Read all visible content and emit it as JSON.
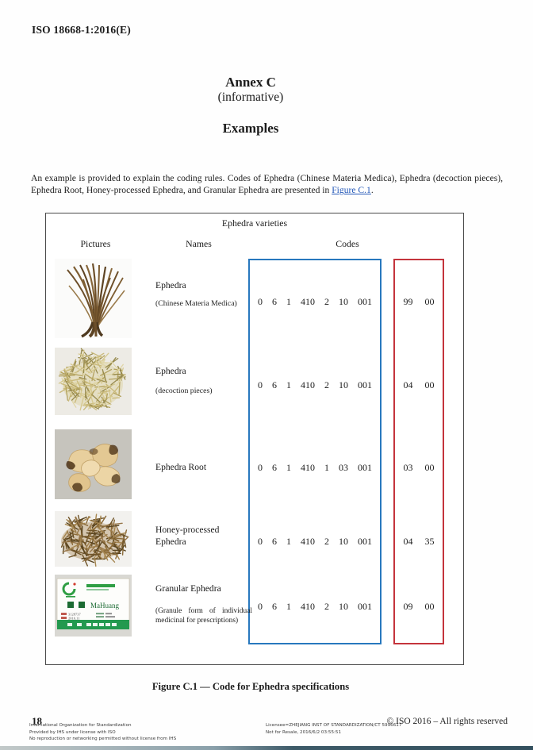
{
  "document": {
    "header": "ISO 18668-1:2016(E)",
    "annex": {
      "title": "Annex C",
      "subtitle": "(informative)",
      "section_title": "Examples"
    },
    "intro": {
      "text_before": "An example is provided to explain the coding rules. Codes of Ephedra (Chinese Materia Medica), Ephedra (decoction pieces), Ephedra Root, Honey-processed Ephedra, and Granular Ephedra are presented in ",
      "link_text": "Figure C.1",
      "text_after": "."
    },
    "caption": "Figure C.1 — Code for Ephedra specifications",
    "footer": {
      "page_number": "18",
      "left_lines": [
        "International Organization for Standardization",
        "Provided by IHS under license with ISO",
        "No reproduction or networking permitted without license from IHS"
      ],
      "license_lines": [
        "Licensee=ZHEJIANG INST OF STANDARDIZATION/CT 5996617",
        "Not for Resale, 2016/6/2 03:55:51"
      ],
      "copyright": "© ISO 2016 – All rights reserved"
    }
  },
  "figure": {
    "title": "Ephedra varieties",
    "columns": {
      "pictures": "Pictures",
      "names": "Names",
      "codes": "Codes"
    },
    "colors": {
      "code_box_border": "#2878BE",
      "spec_box_border": "#C4343C"
    },
    "rows": [
      {
        "name": "Ephedra",
        "subtitle": "(Chinese Materia Medica)",
        "code": "0 6 1 410 2 10 001",
        "spec": "99 00",
        "picture": "dried ephedra herb (Chinese Materia Medica)"
      },
      {
        "name": "Ephedra",
        "subtitle": "(decoction pieces)",
        "code": "0 6 1 410 2 10 001",
        "spec": "04 00",
        "picture": "cut ephedra decoction pieces"
      },
      {
        "name": "Ephedra Root",
        "subtitle": "",
        "code": "0 6 1 410 1 03 001",
        "spec": "03 00",
        "picture": "ephedra root slices"
      },
      {
        "name": "Honey-processed Ephedra",
        "subtitle": "",
        "code": "0 6 1 410 2 10 001",
        "spec": "04 35",
        "picture": "honey-processed ephedra pieces"
      },
      {
        "name": "Granular Ephedra",
        "subtitle": "(Granule form of individual medicinal for prescriptions)",
        "code": "0 6 1 410 2 10 001",
        "spec": "09 00",
        "picture": "granular ephedra product label"
      }
    ],
    "label": {
      "pinyin": "MaHuang"
    }
  }
}
